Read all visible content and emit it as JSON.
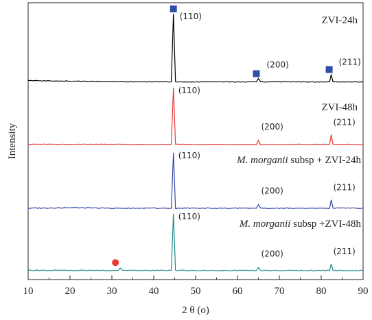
{
  "chart_data": {
    "type": "line",
    "xlabel": "2 θ (ο)",
    "ylabel": "Intensity",
    "xlim": [
      10,
      90
    ],
    "xticks": [
      "10",
      "20",
      "30",
      "40",
      "50",
      "60",
      "70",
      "80",
      "90"
    ],
    "yticks": [],
    "grid": false,
    "series": [
      {
        "name": "ZVI-24h",
        "name_parts": [
          "ZVI-24h"
        ],
        "color": "#000000",
        "baseline": 0.5,
        "points": [
          [
            10,
            2.5
          ],
          [
            15,
            1.9
          ],
          [
            20,
            1.5
          ],
          [
            25,
            1.3
          ],
          [
            30,
            1.0
          ],
          [
            35,
            0.8
          ],
          [
            40,
            0.6
          ],
          [
            44.2,
            0.6
          ],
          [
            44.7,
            100
          ],
          [
            45.2,
            0.6
          ],
          [
            50,
            0.5
          ],
          [
            60,
            0.5
          ],
          [
            64.5,
            0.5
          ],
          [
            65.0,
            5.5
          ],
          [
            65.5,
            0.5
          ],
          [
            70,
            0.5
          ],
          [
            82.0,
            0.6
          ],
          [
            82.4,
            11.5
          ],
          [
            82.8,
            0.6
          ],
          [
            90,
            0.5
          ]
        ],
        "peaks": [
          {
            "x": 44.7,
            "label": "(110)",
            "marker": "square"
          },
          {
            "x": 65.0,
            "label": "(200)",
            "marker": "square"
          },
          {
            "x": 82.4,
            "label": "(211)",
            "marker": "square"
          }
        ]
      },
      {
        "name": "ZVI-48h",
        "name_parts": [
          "ZVI-48h"
        ],
        "color": "#e53935",
        "baseline": 1.0,
        "points": [
          [
            10,
            1.5
          ],
          [
            20,
            1.3
          ],
          [
            30,
            1.3
          ],
          [
            40,
            1.2
          ],
          [
            44.2,
            1.2
          ],
          [
            44.7,
            84
          ],
          [
            45.2,
            1.2
          ],
          [
            50,
            1.1
          ],
          [
            60,
            1.1
          ],
          [
            64.5,
            1.1
          ],
          [
            65.0,
            7.0
          ],
          [
            65.5,
            1.1
          ],
          [
            70,
            1.1
          ],
          [
            80,
            1.2
          ],
          [
            82.0,
            1.3
          ],
          [
            82.4,
            15.5
          ],
          [
            82.8,
            1.3
          ],
          [
            90,
            1.1
          ]
        ],
        "peaks": [
          {
            "x": 44.7,
            "label": "(110)"
          },
          {
            "x": 65.0,
            "label": "(200)"
          },
          {
            "x": 82.4,
            "label": "(211)"
          }
        ]
      },
      {
        "name": "M. morganii subsp + ZVI-24h",
        "name_parts": [
          "M. morganii",
          " subsp + ZVI-24h"
        ],
        "color": "#3446a8",
        "baseline": 0.8,
        "points": [
          [
            10,
            0.8
          ],
          [
            20,
            1.4
          ],
          [
            30,
            0.8
          ],
          [
            40,
            0.8
          ],
          [
            44.2,
            0.8
          ],
          [
            44.7,
            58
          ],
          [
            45.2,
            0.8
          ],
          [
            50,
            0.8
          ],
          [
            60,
            0.8
          ],
          [
            64.5,
            0.8
          ],
          [
            65.0,
            4.5
          ],
          [
            65.5,
            0.8
          ],
          [
            70,
            0.8
          ],
          [
            80,
            0.8
          ],
          [
            82.0,
            0.8
          ],
          [
            82.4,
            9.5
          ],
          [
            82.8,
            0.8
          ],
          [
            90,
            0.8
          ]
        ],
        "peaks": [
          {
            "x": 44.7,
            "label": "(110)"
          },
          {
            "x": 65.0,
            "label": "(200)"
          },
          {
            "x": 82.4,
            "label": "(211)"
          }
        ]
      },
      {
        "name": "M. morganii subsp +ZVI-48h",
        "name_parts": [
          "M. morganii",
          " subsp +ZVI-48h"
        ],
        "color": "#1f8a8a",
        "baseline": 0.8,
        "points": [
          [
            10,
            1.2
          ],
          [
            20,
            1.0
          ],
          [
            30,
            1.0
          ],
          [
            31.5,
            1.0
          ],
          [
            32.0,
            3.5
          ],
          [
            32.5,
            1.0
          ],
          [
            40,
            1.0
          ],
          [
            44.2,
            1.0
          ],
          [
            44.7,
            61
          ],
          [
            45.2,
            1.0
          ],
          [
            50,
            0.9
          ],
          [
            60,
            0.9
          ],
          [
            64.5,
            0.9
          ],
          [
            65.0,
            4.0
          ],
          [
            65.5,
            0.9
          ],
          [
            70,
            0.9
          ],
          [
            80,
            0.9
          ],
          [
            82.0,
            0.9
          ],
          [
            82.4,
            8.0
          ],
          [
            82.8,
            0.9
          ],
          [
            90,
            0.9
          ]
        ],
        "peaks": [
          {
            "x": 32.0,
            "label": "",
            "marker": "circle"
          },
          {
            "x": 44.7,
            "label": "(110)"
          },
          {
            "x": 65.0,
            "label": "(200)"
          },
          {
            "x": 82.4,
            "label": "(211)"
          }
        ]
      }
    ],
    "marker_colors": {
      "square": "#2f4ea8",
      "circle": "#e53935"
    }
  }
}
